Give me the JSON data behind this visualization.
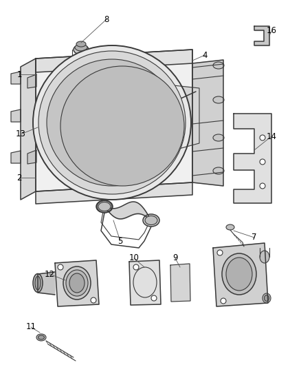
{
  "background_color": "#ffffff",
  "line_color": "#3a3a3a",
  "label_color": "#000000",
  "callout_line_color": "#555555",
  "label_fontsize": 8.5,
  "fig_w": 4.38,
  "fig_h": 5.33,
  "dpi": 100,
  "upper_parts": {
    "shroud_fill": "#e8e8e8",
    "fan_circle_fill": "#d0d0d0",
    "bracket_fill": "#cccccc"
  }
}
